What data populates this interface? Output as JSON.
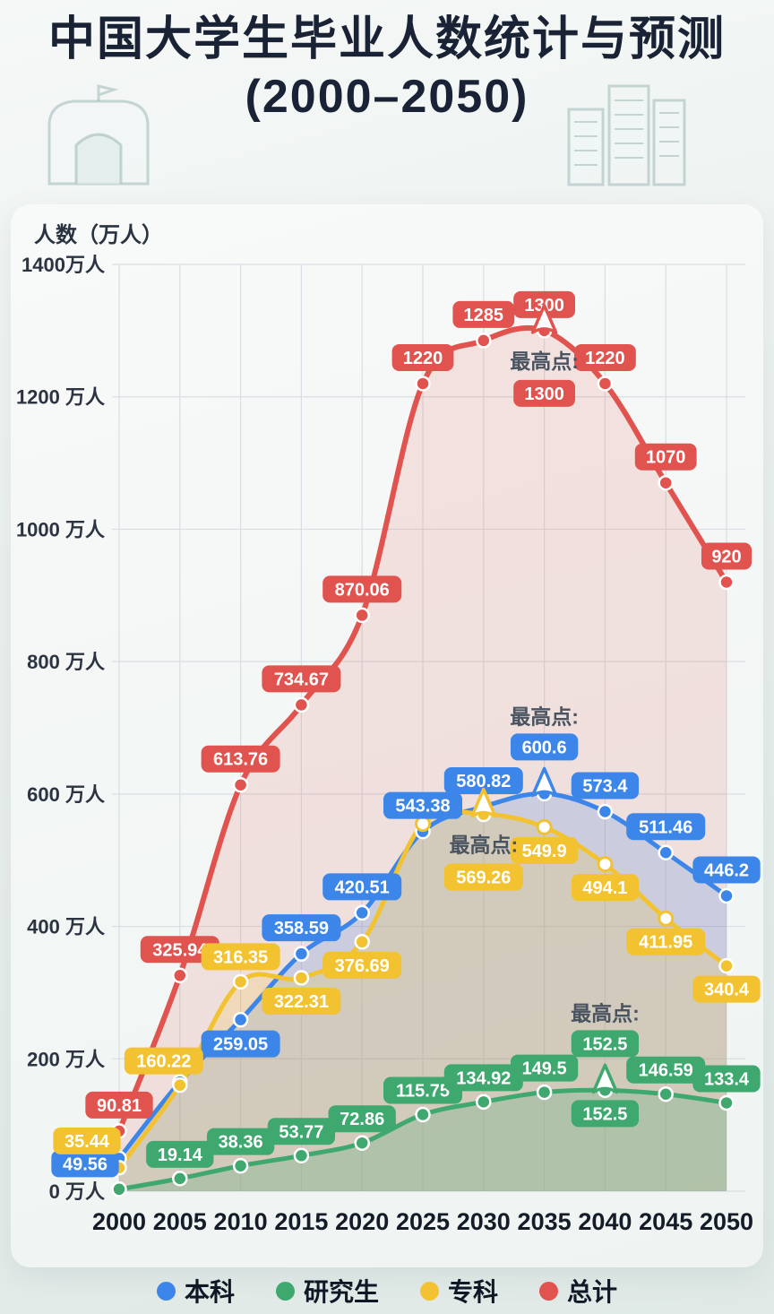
{
  "title": {
    "line1": "中国大学生毕业人数统计与预测",
    "line2": "(2000–2050)"
  },
  "chart_data": {
    "type": "line",
    "x": [
      2000,
      2005,
      2010,
      2015,
      2020,
      2025,
      2030,
      2035,
      2040,
      2045,
      2050
    ],
    "x_tick_labels": [
      "2000",
      "2005",
      "2010",
      "2015",
      "2020",
      "2025",
      "2030",
      "2035",
      "2040",
      "2045",
      "2050"
    ],
    "ylabel": "人数（万人）",
    "ylim": [
      0,
      1400
    ],
    "y_ticks": [
      0,
      200,
      400,
      600,
      800,
      1000,
      1200,
      1400
    ],
    "y_tick_labels": [
      "0 万人",
      "200 万人",
      "400 万人",
      "600 万人",
      "800 万人",
      "1000 万人",
      "1200 万人",
      "1400万人"
    ],
    "grid": true,
    "legend_position": "bottom",
    "series": [
      {
        "id": "undergraduate",
        "name": "本科",
        "color": "#3c86ea",
        "values": [
          49.56,
          165,
          259.05,
          358.59,
          420.51,
          543.38,
          580.82,
          600.6,
          573.4,
          511.46,
          446.2
        ],
        "labels": [
          "49.56",
          null,
          "259.05",
          "358.59",
          "420.51",
          "543.38",
          "580.82",
          null,
          "573.4",
          "511.46",
          "446.2"
        ],
        "peak": {
          "x": 2035,
          "label": "最高点:",
          "value": "600.6"
        }
      },
      {
        "id": "graduate",
        "name": "研究生",
        "color": "#3fa86f",
        "values": [
          3,
          19.14,
          38.36,
          53.77,
          72.86,
          115.75,
          134.92,
          149.5,
          152.5,
          146.59,
          133.4
        ],
        "labels": [
          null,
          "19.14",
          "38.36",
          "53.77",
          "72.86",
          "115.75",
          "134.92",
          "149.5",
          "152.5",
          "146.59",
          "133.4"
        ],
        "peak": {
          "x": 2040,
          "label": "最高点:",
          "value": "152.5"
        }
      },
      {
        "id": "associate",
        "name": "专科",
        "color": "#f2c230",
        "values": [
          35.44,
          160.22,
          316.35,
          322.31,
          376.69,
          555,
          569.26,
          549.9,
          494.1,
          411.95,
          340.4
        ],
        "labels": [
          "35.44",
          "160.22",
          "316.35",
          "322.31",
          "376.69",
          null,
          null,
          "549.9",
          "494.1",
          "411.95",
          "340.4"
        ],
        "peak": {
          "x": 2030,
          "label": "最高点:",
          "value": "569.26"
        }
      },
      {
        "id": "total",
        "name": "总计",
        "color": "#e0534e",
        "values": [
          90.81,
          325.94,
          613.76,
          734.67,
          870.06,
          1220,
          1285,
          1300,
          1220,
          1070,
          920
        ],
        "labels": [
          "90.81",
          "325.94",
          "613.76",
          "734.67",
          "870.06",
          "1220",
          "1285",
          "1300",
          "1220",
          "1070",
          "920"
        ],
        "peak": {
          "x": 2035,
          "label": "最高点:",
          "value": "1300"
        }
      }
    ],
    "legend": [
      {
        "label": "本科",
        "color": "#3c86ea"
      },
      {
        "label": "研究生",
        "color": "#3fa86f"
      },
      {
        "label": "专科",
        "color": "#f2c230"
      },
      {
        "label": "总计",
        "color": "#e0534e"
      }
    ]
  }
}
